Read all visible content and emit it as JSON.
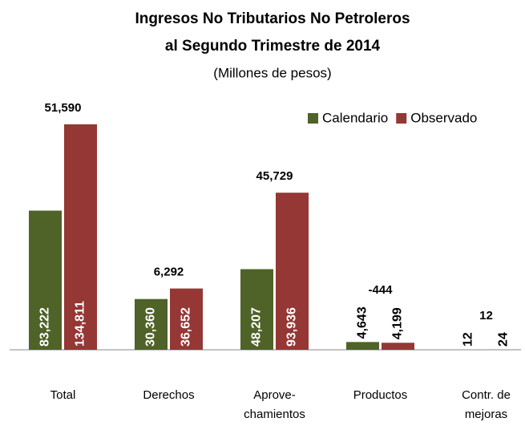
{
  "chart_data": {
    "type": "bar",
    "title": [
      "Ingresos No Tributarios No Petroleros",
      "al Segundo Trimestre de 2014"
    ],
    "subtitle": "(Millones de pesos)",
    "categories": [
      [
        "Total"
      ],
      [
        "Derechos"
      ],
      [
        "Aprove-",
        "chamientos"
      ],
      [
        "Productos"
      ],
      [
        "Contr. de",
        "mejoras"
      ]
    ],
    "series": [
      {
        "name": "Calendario",
        "color": "#4f6228",
        "values": [
          83222,
          30360,
          48207,
          4643,
          12
        ],
        "value_labels": [
          "83,222",
          "30,360",
          "48,207",
          "4,643",
          "12"
        ]
      },
      {
        "name": "Observado",
        "color": "#953735",
        "values": [
          134811,
          36652,
          93936,
          4199,
          24
        ],
        "value_labels": [
          "134,811",
          "36,652",
          "93,936",
          "4,199",
          "24"
        ]
      }
    ],
    "annotations": [
      {
        "value": 51590,
        "label": "51,590"
      },
      {
        "value": 6292,
        "label": "6,292"
      },
      {
        "value": 45729,
        "label": "45,729"
      },
      {
        "value": -444,
        "label": "-444"
      },
      {
        "value": 12,
        "label": "12"
      }
    ],
    "legend": "top-right"
  }
}
